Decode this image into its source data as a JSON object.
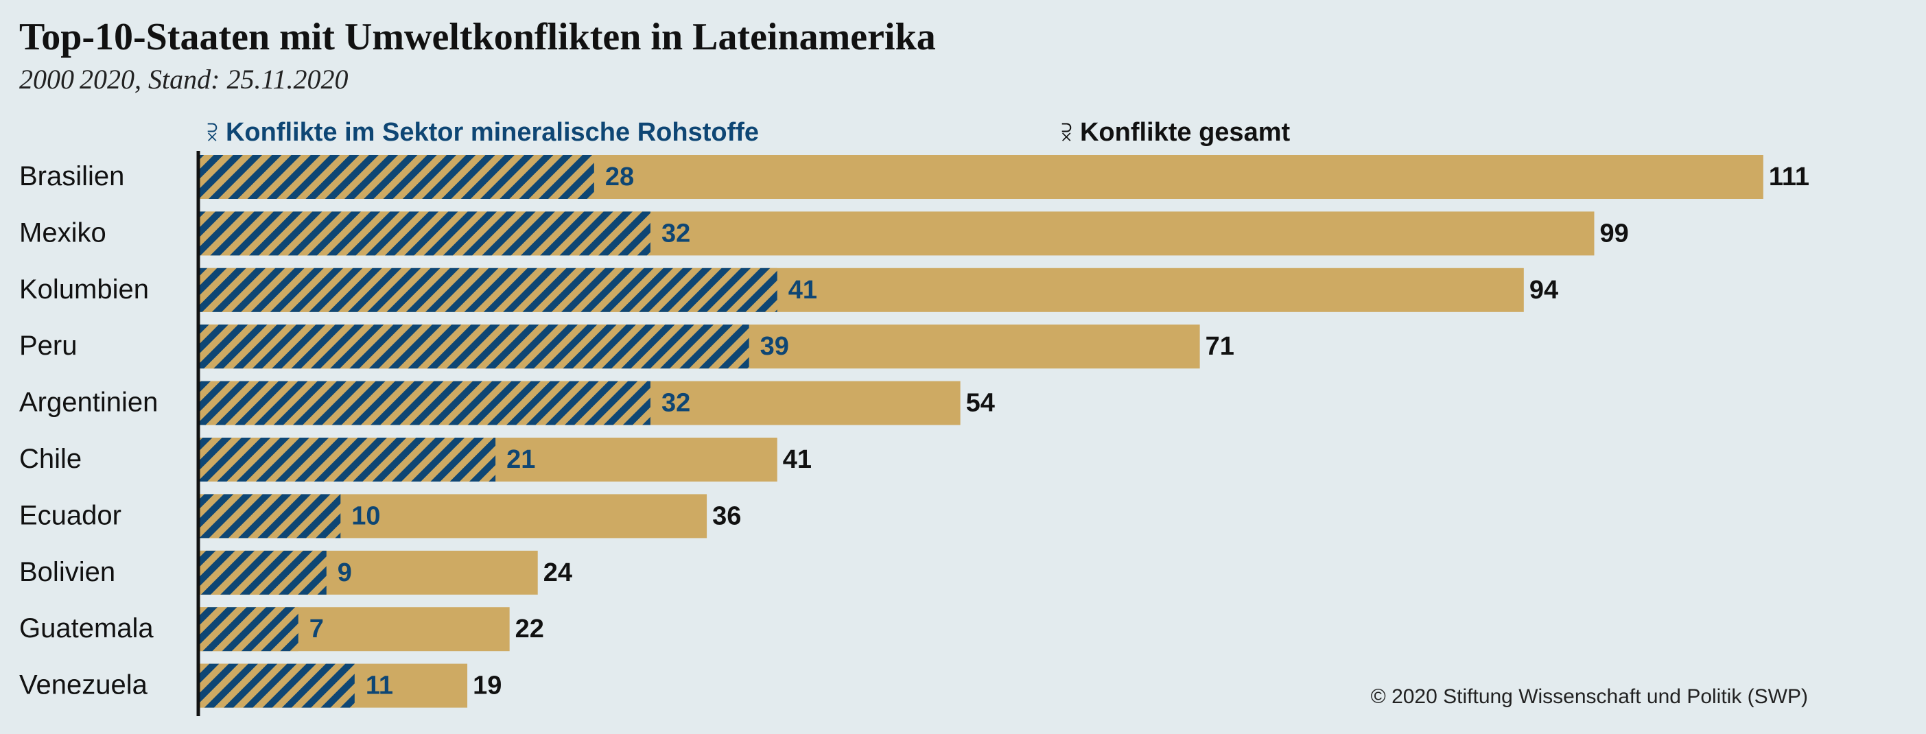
{
  "title": "Top-10-Staaten mit Umweltkonflikten in Lateinamerika",
  "subtitle": "2000 2020, Stand: 25.11.2020",
  "legend": {
    "mineral_label": "Konflikte im Sektor mineralische Rohstoffe",
    "total_label": "Konflikte gesamt",
    "arrow_glyph": "⫂"
  },
  "copyright": "© 2020 Stiftung Wissenschaft und Politik (SWP)",
  "colors": {
    "total_bar": "#ceaa63",
    "mineral_stripe": "#0e4674",
    "mineral_label": "#0e4674",
    "total_label": "#111111",
    "axis": "#111111"
  },
  "chart_data": {
    "type": "bar",
    "orientation": "horizontal",
    "stacking": "overlay",
    "categories": [
      "Brasilien",
      "Mexiko",
      "Kolumbien",
      "Peru",
      "Argentinien",
      "Chile",
      "Ecuador",
      "Bolivien",
      "Guatemala",
      "Venezuela"
    ],
    "series": [
      {
        "name": "Konflikte gesamt",
        "values": [
          111,
          99,
          94,
          71,
          54,
          41,
          36,
          24,
          22,
          19
        ]
      },
      {
        "name": "Konflikte im Sektor mineralische Rohstoffe",
        "values": [
          28,
          32,
          41,
          39,
          32,
          21,
          10,
          9,
          7,
          11
        ]
      }
    ],
    "xlim": [
      0,
      111
    ],
    "grid": false,
    "legend_position": "top"
  }
}
